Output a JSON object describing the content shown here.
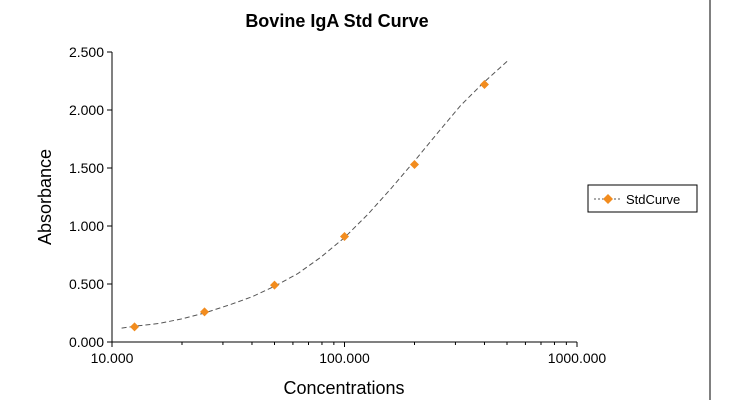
{
  "chart_data": {
    "type": "scatter",
    "title": "Bovine IgA Std Curve",
    "xlabel": "Concentrations",
    "ylabel": "Absorbance",
    "x_scale": "log",
    "xlim": [
      10,
      1000
    ],
    "ylim": [
      0,
      2.5
    ],
    "x_ticks": [
      10,
      100,
      1000
    ],
    "x_tick_labels": [
      "10.000",
      "100.000",
      "1000.000"
    ],
    "y_ticks": [
      0,
      0.5,
      1.0,
      1.5,
      2.0,
      2.5
    ],
    "y_tick_labels": [
      "0.000",
      "0.500",
      "1.000",
      "1.500",
      "2.000",
      "2.500"
    ],
    "grid": false,
    "legend_position": "right",
    "series": [
      {
        "name": "StdCurve",
        "color": "#f28c1e",
        "marker": "diamond",
        "x": [
          12.5,
          25,
          50,
          100,
          200,
          400
        ],
        "y": [
          0.13,
          0.26,
          0.49,
          0.91,
          1.53,
          2.22
        ]
      }
    ],
    "trendline": {
      "style": "dashed",
      "color": "#555555",
      "x": [
        11,
        13,
        16,
        20,
        25,
        32,
        40,
        50,
        63,
        79,
        100,
        126,
        158,
        200,
        251,
        316,
        398,
        501
      ],
      "y": [
        0.12,
        0.14,
        0.16,
        0.2,
        0.25,
        0.32,
        0.39,
        0.48,
        0.59,
        0.73,
        0.9,
        1.1,
        1.32,
        1.56,
        1.8,
        2.04,
        2.24,
        2.42
      ]
    }
  }
}
